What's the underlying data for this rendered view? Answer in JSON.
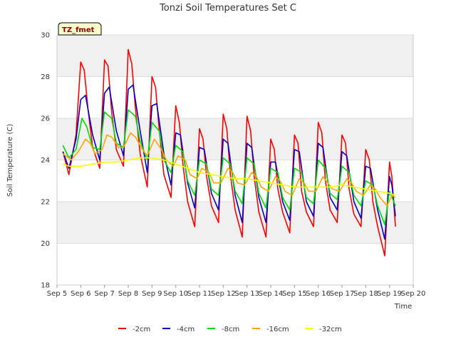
{
  "chart_data": {
    "type": "line",
    "title": "Tonzi Soil Temperatures Set C",
    "xlabel": "Time",
    "ylabel": "Soil Temperature (C)",
    "annotation": "TZ_fmet",
    "xlim": [
      5,
      20
    ],
    "ylim": [
      18,
      30
    ],
    "x_ticks": [
      5,
      6,
      7,
      8,
      9,
      10,
      11,
      12,
      13,
      14,
      15,
      16,
      17,
      18,
      19,
      20
    ],
    "x_tick_labels": [
      "Sep 5",
      "Sep 6",
      "Sep 7",
      "Sep 8",
      "Sep 9",
      "Sep 10",
      "Sep 11",
      "Sep 12",
      "Sep 13",
      "Sep 14",
      "Sep 15",
      "Sep 16",
      "Sep 17",
      "Sep 18",
      "Sep 19",
      "Sep 20"
    ],
    "y_ticks": [
      18,
      20,
      22,
      24,
      26,
      28,
      30
    ],
    "grid": "horizontal",
    "legend_position": "bottom",
    "colors": {
      "plot_band": "#f0f0f0",
      "grid": "#dddddd",
      "axis": "#cccccc",
      "tag_bg": "#ffffcc"
    },
    "series": [
      {
        "name": "-2cm",
        "color": "#ff0000",
        "x": [
          5.25,
          5.5,
          5.8,
          6.0,
          6.15,
          6.3,
          6.5,
          6.8,
          7.0,
          7.15,
          7.3,
          7.5,
          7.8,
          8.0,
          8.15,
          8.3,
          8.5,
          8.8,
          9.0,
          9.15,
          9.3,
          9.5,
          9.8,
          10.0,
          10.15,
          10.3,
          10.5,
          10.8,
          11.0,
          11.15,
          11.3,
          11.5,
          11.8,
          12.0,
          12.15,
          12.3,
          12.5,
          12.8,
          13.0,
          13.15,
          13.3,
          13.5,
          13.8,
          14.0,
          14.15,
          14.3,
          14.5,
          14.8,
          15.0,
          15.15,
          15.3,
          15.5,
          15.8,
          16.0,
          16.15,
          16.3,
          16.5,
          16.8,
          17.0,
          17.15,
          17.3,
          17.5,
          17.8,
          18.0,
          18.15,
          18.3,
          18.5,
          18.8,
          19.0,
          19.1,
          19.25
        ],
        "y": [
          24.4,
          23.3,
          25.2,
          28.7,
          28.3,
          26.5,
          24.6,
          23.6,
          28.8,
          28.5,
          26.3,
          24.5,
          23.7,
          29.3,
          28.6,
          26.5,
          24.3,
          22.7,
          28.0,
          27.5,
          25.5,
          23.3,
          22.2,
          26.6,
          25.8,
          23.8,
          22.0,
          20.8,
          25.5,
          25.0,
          23.2,
          21.8,
          21.0,
          26.2,
          25.5,
          23.3,
          21.6,
          20.3,
          26.1,
          25.4,
          23.2,
          21.5,
          20.3,
          25.0,
          24.5,
          22.6,
          21.5,
          20.5,
          25.2,
          24.8,
          22.5,
          21.5,
          20.8,
          25.8,
          25.3,
          23.0,
          21.6,
          21.0,
          25.2,
          24.8,
          22.6,
          21.4,
          20.8,
          24.5,
          24.0,
          22.0,
          20.8,
          19.4,
          23.9,
          23.2,
          20.8
        ]
      },
      {
        "name": "-4cm",
        "color": "#0000cc",
        "x": [
          5.25,
          5.5,
          5.8,
          6.0,
          6.2,
          6.5,
          6.8,
          7.0,
          7.2,
          7.5,
          7.8,
          8.0,
          8.2,
          8.5,
          8.8,
          9.0,
          9.2,
          9.5,
          9.8,
          10.0,
          10.2,
          10.5,
          10.8,
          11.0,
          11.2,
          11.5,
          11.8,
          12.0,
          12.2,
          12.5,
          12.8,
          13.0,
          13.2,
          13.5,
          13.8,
          14.0,
          14.2,
          14.5,
          14.8,
          15.0,
          15.2,
          15.5,
          15.8,
          16.0,
          16.2,
          16.5,
          16.8,
          17.0,
          17.2,
          17.5,
          17.8,
          18.0,
          18.2,
          18.5,
          18.8,
          19.0,
          19.1,
          19.25
        ],
        "y": [
          24.4,
          23.6,
          25.0,
          26.9,
          27.1,
          25.2,
          24.0,
          27.2,
          27.5,
          25.4,
          24.2,
          27.4,
          27.6,
          25.4,
          23.4,
          26.6,
          26.7,
          24.3,
          22.8,
          25.3,
          25.2,
          22.9,
          21.7,
          24.6,
          24.5,
          22.4,
          21.6,
          25.0,
          24.8,
          22.3,
          21.0,
          24.8,
          24.6,
          22.2,
          21.0,
          23.9,
          23.9,
          22.0,
          21.1,
          24.5,
          24.4,
          22.0,
          21.3,
          24.8,
          24.6,
          22.2,
          21.6,
          24.4,
          24.2,
          22.0,
          21.2,
          23.7,
          23.6,
          21.6,
          20.2,
          23.2,
          22.8,
          21.3
        ]
      },
      {
        "name": "-8cm",
        "color": "#00dd00",
        "x": [
          5.25,
          5.5,
          5.8,
          6.05,
          6.25,
          6.5,
          6.8,
          7.0,
          7.3,
          7.5,
          7.8,
          8.0,
          8.3,
          8.5,
          8.8,
          9.0,
          9.3,
          9.5,
          9.8,
          10.0,
          10.3,
          10.5,
          10.8,
          11.0,
          11.3,
          11.5,
          11.8,
          12.0,
          12.3,
          12.5,
          12.8,
          13.0,
          13.3,
          13.5,
          13.8,
          14.0,
          14.3,
          14.5,
          14.8,
          15.0,
          15.3,
          15.5,
          15.8,
          16.0,
          16.3,
          16.5,
          16.8,
          17.0,
          17.3,
          17.5,
          17.8,
          18.0,
          18.3,
          18.5,
          18.8,
          19.0,
          19.25
        ],
        "y": [
          24.7,
          24.1,
          24.5,
          26.0,
          25.6,
          24.6,
          24.5,
          26.3,
          26.0,
          24.8,
          24.6,
          26.4,
          26.1,
          24.9,
          24.0,
          25.8,
          25.4,
          24.0,
          23.4,
          24.7,
          24.4,
          23.0,
          22.3,
          24.0,
          23.8,
          22.6,
          22.3,
          24.1,
          23.8,
          22.5,
          21.9,
          24.1,
          23.8,
          22.4,
          21.7,
          23.6,
          23.4,
          22.2,
          21.6,
          23.6,
          23.4,
          22.2,
          21.9,
          24.0,
          23.6,
          22.4,
          22.1,
          23.7,
          23.4,
          22.3,
          21.8,
          23.0,
          22.8,
          21.8,
          20.9,
          22.5,
          21.8
        ]
      },
      {
        "name": "-16cm",
        "color": "#ffa500",
        "x": [
          5.25,
          5.6,
          5.9,
          6.2,
          6.4,
          6.6,
          6.9,
          7.1,
          7.3,
          7.6,
          7.8,
          8.1,
          8.3,
          8.6,
          8.8,
          9.1,
          9.4,
          9.6,
          9.9,
          10.1,
          10.4,
          10.6,
          10.9,
          11.1,
          11.4,
          11.6,
          11.9,
          12.2,
          12.4,
          12.6,
          12.9,
          13.2,
          13.4,
          13.6,
          13.9,
          14.2,
          14.4,
          14.6,
          14.9,
          15.2,
          15.4,
          15.6,
          15.9,
          16.2,
          16.4,
          16.6,
          16.9,
          17.2,
          17.4,
          17.6,
          17.9,
          18.2,
          18.4,
          18.6,
          18.9,
          19.1,
          19.25
        ],
        "y": [
          24.3,
          24.0,
          24.4,
          25.0,
          24.8,
          24.3,
          24.5,
          25.2,
          25.1,
          24.6,
          24.6,
          25.3,
          25.1,
          24.5,
          24.2,
          25.0,
          24.5,
          24.0,
          23.7,
          24.2,
          24.0,
          23.3,
          23.1,
          23.6,
          23.4,
          22.9,
          22.9,
          23.6,
          23.4,
          22.9,
          22.8,
          23.4,
          23.2,
          22.7,
          22.5,
          23.2,
          23.0,
          22.5,
          22.3,
          23.1,
          22.9,
          22.5,
          22.5,
          23.2,
          22.9,
          22.6,
          22.5,
          23.1,
          22.9,
          22.5,
          22.3,
          22.8,
          22.6,
          22.2,
          21.8,
          22.3,
          22.2
        ]
      },
      {
        "name": "-32cm",
        "color": "#ffff00",
        "x": [
          5.25,
          5.5,
          6.0,
          6.5,
          7.0,
          7.5,
          8.0,
          8.5,
          9.0,
          9.5,
          10.0,
          10.5,
          11.0,
          11.5,
          12.0,
          12.5,
          13.0,
          13.5,
          14.0,
          14.5,
          15.0,
          15.5,
          16.0,
          16.5,
          17.0,
          17.5,
          18.0,
          18.5,
          19.0,
          19.25
        ],
        "y": [
          23.8,
          23.7,
          23.7,
          23.8,
          23.9,
          23.9,
          24.0,
          24.1,
          24.1,
          24.0,
          23.8,
          23.6,
          23.4,
          23.3,
          23.2,
          23.1,
          23.1,
          23.0,
          22.9,
          22.8,
          22.7,
          22.7,
          22.7,
          22.7,
          22.8,
          22.7,
          22.6,
          22.5,
          22.4,
          22.3
        ]
      }
    ]
  }
}
